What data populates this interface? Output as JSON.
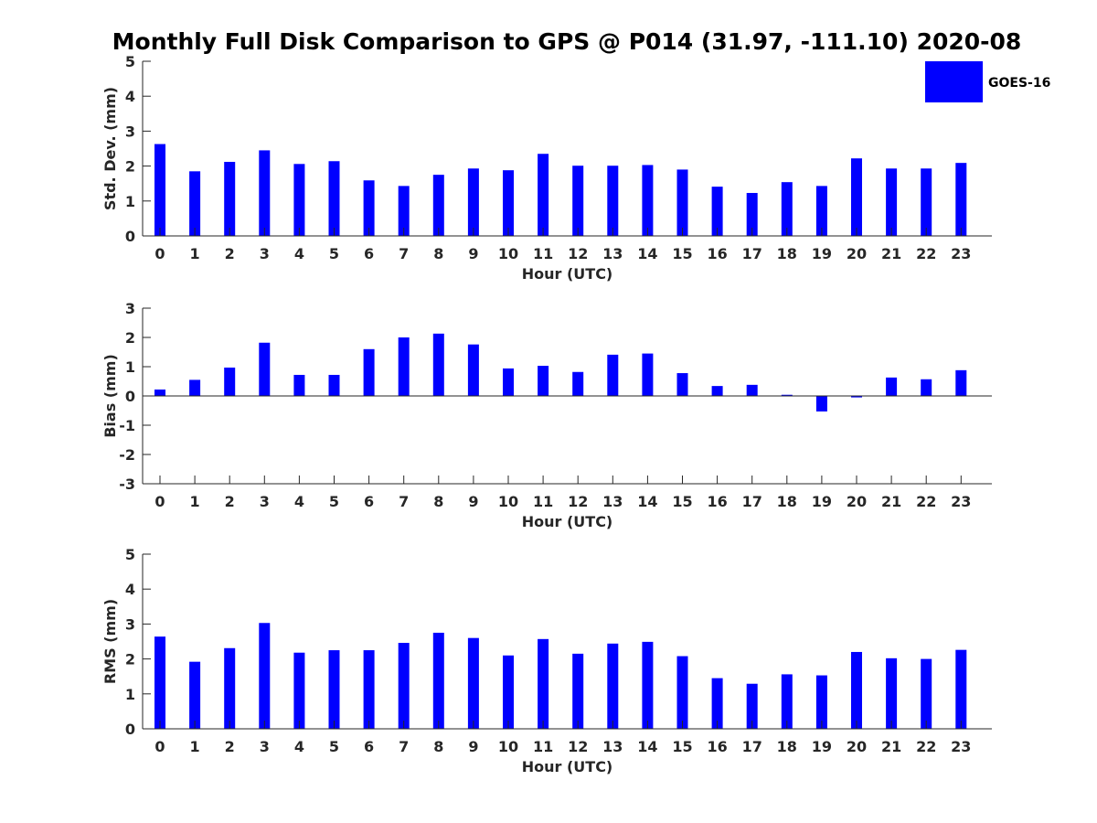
{
  "figure": {
    "title": "Monthly Full Disk Comparison to GPS @ P014 (31.97, -111.10) 2020-08",
    "bar_color": "#0000ff",
    "legend": {
      "label": "GOES-16",
      "color": "#0000ff",
      "placement": "top-right"
    }
  },
  "chart_data": [
    {
      "type": "bar",
      "xlabel": "Hour (UTC)",
      "ylabel": "Std. Dev. (mm)",
      "categories": [
        "0",
        "1",
        "2",
        "3",
        "4",
        "5",
        "6",
        "7",
        "8",
        "9",
        "10",
        "11",
        "12",
        "13",
        "14",
        "15",
        "16",
        "17",
        "18",
        "19",
        "20",
        "21",
        "22",
        "23"
      ],
      "ylim": [
        0,
        5
      ],
      "yticks": [
        "0",
        "1",
        "2",
        "3",
        "4",
        "5"
      ],
      "grid": false,
      "series": [
        {
          "name": "GOES-16",
          "values": [
            2.63,
            1.85,
            2.12,
            2.45,
            2.06,
            2.14,
            1.59,
            1.43,
            1.75,
            1.93,
            1.88,
            2.35,
            2.01,
            2.01,
            2.03,
            1.9,
            1.41,
            1.23,
            1.54,
            1.43,
            2.22,
            1.93,
            1.93,
            2.09
          ]
        }
      ]
    },
    {
      "type": "bar",
      "xlabel": "Hour (UTC)",
      "ylabel": "Bias (mm)",
      "categories": [
        "0",
        "1",
        "2",
        "3",
        "4",
        "5",
        "6",
        "7",
        "8",
        "9",
        "10",
        "11",
        "12",
        "13",
        "14",
        "15",
        "16",
        "17",
        "18",
        "19",
        "20",
        "21",
        "22",
        "23"
      ],
      "ylim": [
        -3,
        3
      ],
      "yticks": [
        "-3",
        "-2",
        "-1",
        "0",
        "1",
        "2",
        "3"
      ],
      "grid": false,
      "series": [
        {
          "name": "GOES-16",
          "values": [
            0.22,
            0.55,
            0.97,
            1.82,
            0.72,
            0.72,
            1.6,
            2.0,
            2.13,
            1.76,
            0.94,
            1.03,
            0.82,
            1.41,
            1.45,
            0.78,
            0.34,
            0.38,
            0.04,
            -0.53,
            -0.05,
            0.63,
            0.57,
            0.88
          ]
        }
      ]
    },
    {
      "type": "bar",
      "xlabel": "Hour (UTC)",
      "ylabel": "RMS (mm)",
      "categories": [
        "0",
        "1",
        "2",
        "3",
        "4",
        "5",
        "6",
        "7",
        "8",
        "9",
        "10",
        "11",
        "12",
        "13",
        "14",
        "15",
        "16",
        "17",
        "18",
        "19",
        "20",
        "21",
        "22",
        "23"
      ],
      "ylim": [
        0,
        5
      ],
      "yticks": [
        "0",
        "1",
        "2",
        "3",
        "4",
        "5"
      ],
      "grid": false,
      "series": [
        {
          "name": "GOES-16",
          "values": [
            2.64,
            1.92,
            2.31,
            3.03,
            2.18,
            2.25,
            2.25,
            2.46,
            2.75,
            2.6,
            2.1,
            2.57,
            2.15,
            2.44,
            2.49,
            2.08,
            1.45,
            1.29,
            1.56,
            1.53,
            2.2,
            2.02,
            2.0,
            2.26
          ]
        }
      ]
    }
  ]
}
